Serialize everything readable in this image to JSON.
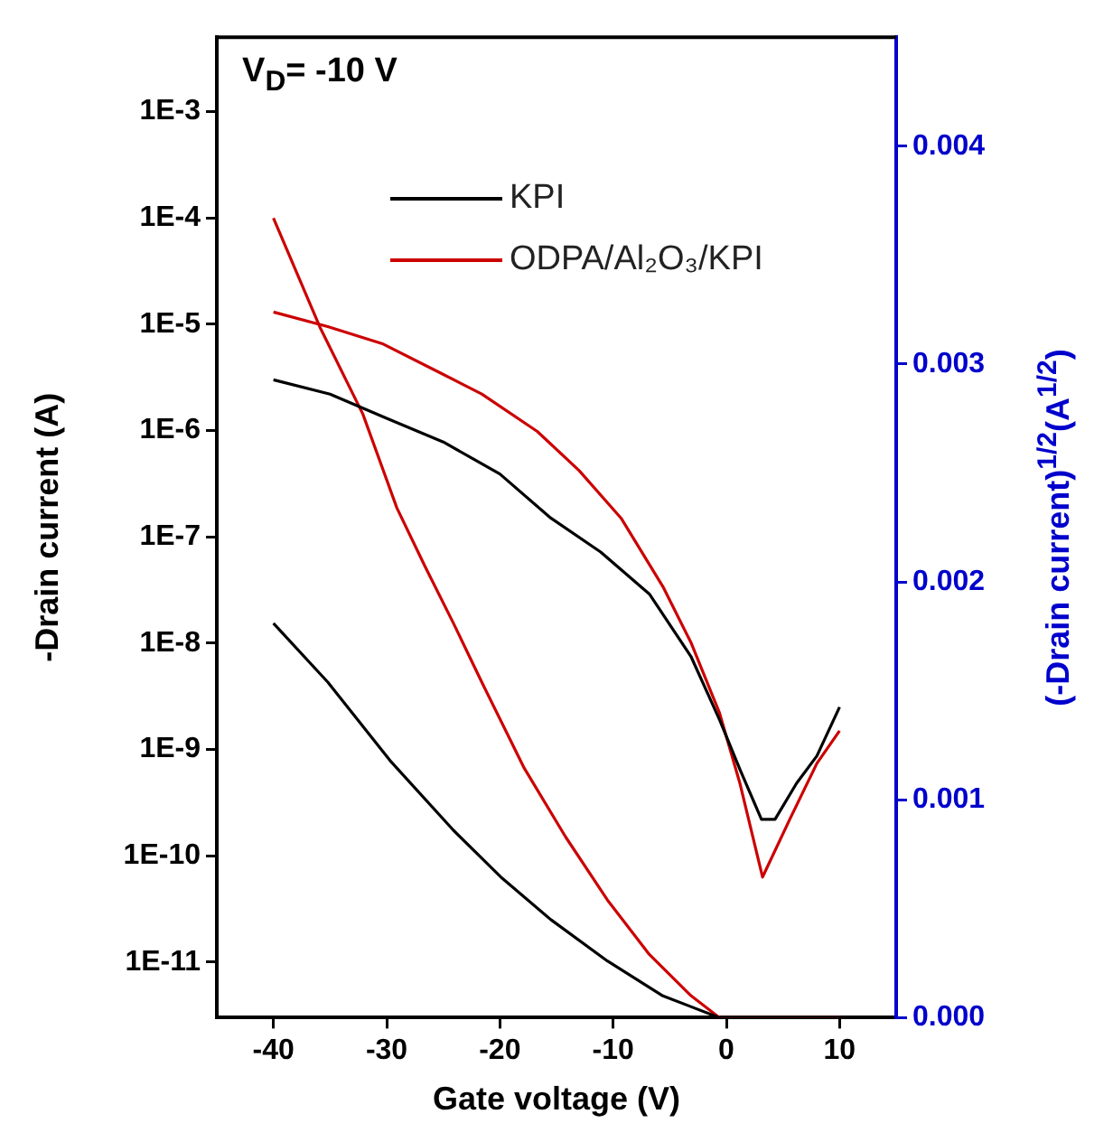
{
  "chart_data": {
    "type": "line",
    "xlabel": "Gate voltage (V)",
    "ylabel": "-Drain current (A)",
    "y2label": "(-Drain current)$^{1/2}$(A$^{1/2}$)",
    "annotations": [
      "V$_{D}$= -10 V"
    ],
    "xlim": [
      -45,
      15
    ],
    "xticks": [
      -40,
      -30,
      -20,
      -10,
      0,
      10
    ],
    "ylim": [
      3e-12,
      0.005
    ],
    "yticks": [
      {
        "value": 0.001,
        "label": "1E-3"
      },
      {
        "value": 0.0001,
        "label": "1E-4"
      },
      {
        "value": 1e-05,
        "label": "1E-5"
      },
      {
        "value": 1e-06,
        "label": "1E-6"
      },
      {
        "value": 1e-07,
        "label": "1E-7"
      },
      {
        "value": 1e-08,
        "label": "1E-8"
      },
      {
        "value": 1e-09,
        "label": "1E-9"
      },
      {
        "value": 1e-10,
        "label": "1E-10"
      },
      {
        "value": 1e-11,
        "label": "1E-11"
      }
    ],
    "y2lim": [
      0,
      0.0045
    ],
    "y2ticks": [
      {
        "value": 0,
        "label": "0.000"
      },
      {
        "value": 0.001,
        "label": "0.001"
      },
      {
        "value": 0.002,
        "label": "0.002"
      },
      {
        "value": 0.003,
        "label": "0.003"
      },
      {
        "value": 0.004,
        "label": "0.004"
      }
    ],
    "log": "y",
    "grid": false,
    "legend": "top",
    "marker": "none",
    "line_style": "solid",
    "series": [
      {
        "name": "KPI",
        "color": "#000000",
        "x": [
          -40,
          -35,
          -30,
          -25,
          -20,
          -15.5,
          -11.1,
          -6.8,
          -3.1,
          -0.6,
          1.2,
          3.1,
          4.3,
          6.2,
          8,
          10
        ],
        "values": [
          3e-06,
          2.2e-06,
          1.3e-06,
          7.8e-07,
          3.9e-07,
          1.5e-07,
          7.2e-08,
          2.9e-08,
          7.4e-09,
          1.9e-09,
          6.5e-10,
          2.2e-10,
          2.2e-10,
          4.8e-10,
          8.7e-10,
          2.5e-09
        ]
      },
      {
        "name": "ODPA/Al₂O₃/KPI",
        "color": "#cc0000",
        "x": [
          -40,
          -35.2,
          -30.3,
          -25.3,
          -21.6,
          -16.7,
          -13,
          -9.3,
          -5.6,
          -3.1,
          -0.6,
          1.2,
          3.2,
          5.6,
          8,
          10
        ],
        "values": [
          1.3e-05,
          9.5e-06,
          6.5e-06,
          3.5e-06,
          2.2e-06,
          9.8e-07,
          4.2e-07,
          1.5e-07,
          3.4e-08,
          1e-08,
          2.2e-09,
          4.8e-10,
          6.3e-11,
          2.2e-10,
          7.4e-10,
          1.5e-09
        ]
      },
      {
        "color": "#000000",
        "axis": "y2",
        "x": [
          -40,
          -35.2,
          -29.7,
          -24.1,
          -19.8,
          -15.5,
          -10.5,
          -5.6,
          -0.6,
          2.5,
          10
        ],
        "values": [
          0.00181,
          0.00154,
          0.00118,
          0.00086,
          0.00064,
          0.00045,
          0.00026,
          0.0001,
          0,
          0,
          0
        ]
      },
      {
        "color": "#cc0000",
        "axis": "y2",
        "x": [
          -40,
          -35.9,
          -32.1,
          -29.1,
          -26.6,
          -24.1,
          -21.6,
          -17.9,
          -14.2,
          -10.5,
          -6.8,
          -3.1,
          -0.6,
          2.5,
          10
        ],
        "values": [
          0.00367,
          0.00317,
          0.00277,
          0.00234,
          0.00207,
          0.00181,
          0.00154,
          0.00115,
          0.00083,
          0.00054,
          0.00029,
          0.0001,
          0,
          0,
          0
        ]
      }
    ]
  }
}
